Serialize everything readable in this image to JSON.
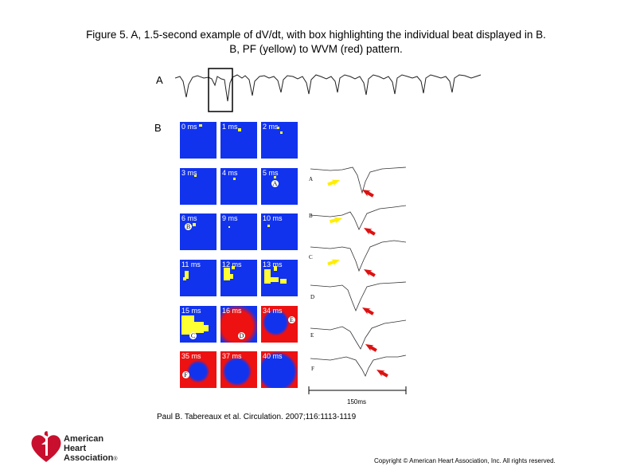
{
  "figure": {
    "title_line1": "Figure 5. A, 1.5-second example of dV/dt, with box highlighting the individual beat displayed in B.",
    "title_line2": "B, PF (yellow) to WVM (red) pattern.",
    "panel_a_label": "A",
    "panel_b_label": "B"
  },
  "tiles": [
    {
      "time": "0 ms"
    },
    {
      "time": "1 ms"
    },
    {
      "time": "2 ms"
    },
    {
      "time": "3 ms"
    },
    {
      "time": "4 ms"
    },
    {
      "time": "5 ms",
      "marker": "A"
    },
    {
      "time": "6 ms",
      "marker": "B"
    },
    {
      "time": "9 ms"
    },
    {
      "time": "10 ms"
    },
    {
      "time": "11 ms"
    },
    {
      "time": "12 ms"
    },
    {
      "time": "13 ms"
    },
    {
      "time": "15 ms",
      "marker": "C"
    },
    {
      "time": "16 ms",
      "marker": "D"
    },
    {
      "time": "34 ms",
      "marker": "E"
    },
    {
      "time": "35 ms",
      "marker": "F"
    },
    {
      "time": "37 ms"
    },
    {
      "time": "40 ms"
    }
  ],
  "traces": [
    "A",
    "B",
    "C",
    "D",
    "E",
    "F"
  ],
  "scale_bar_label": "150ms",
  "citation": "Paul B. Tabereaux et al. Circulation. 2007;116:1113-1119",
  "copyright": "Copyright © American Heart Association, Inc. All rights reserved.",
  "logo": {
    "line1": "American",
    "line2": "Heart",
    "line3": "Association",
    "mark": "®"
  },
  "colors": {
    "pf": "#ffff33",
    "wvm": "#ee1111",
    "background_tile": "#1133ee",
    "arrow_yellow": "#ffee00",
    "arrow_red": "#dd1111"
  }
}
